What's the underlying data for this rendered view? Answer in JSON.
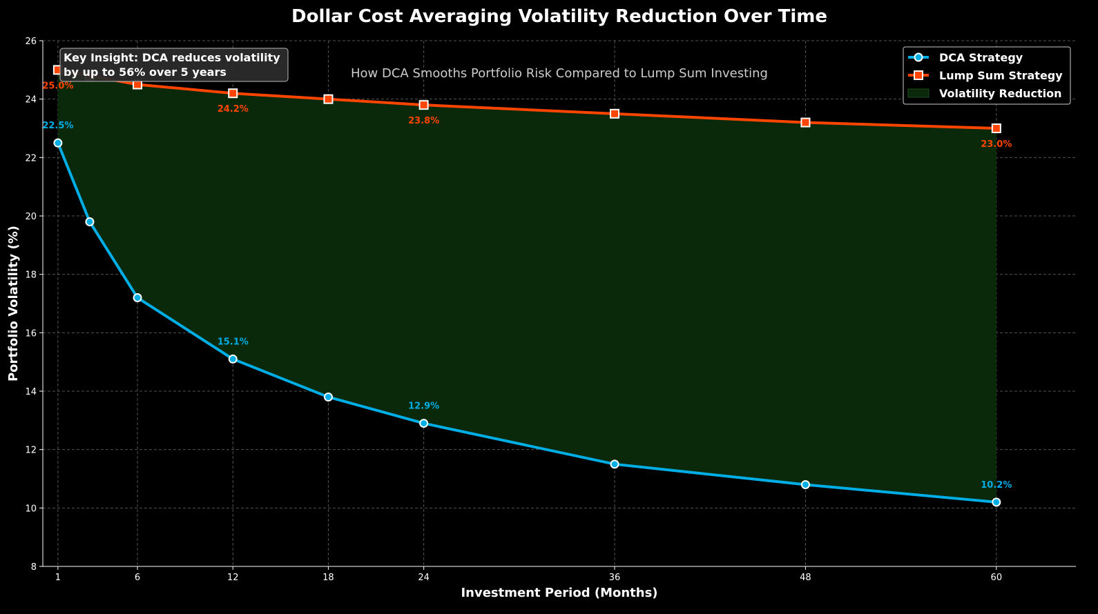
{
  "chart_data": {
    "type": "line",
    "title": "Dollar Cost Averaging Volatility Reduction Over Time",
    "subtitle": "How DCA Smooths Portfolio Risk Compared to Lump Sum Investing",
    "xlabel": "Investment Period (Months)",
    "ylabel": "Portfolio Volatility (%)",
    "xlim": [
      0.05,
      65
    ],
    "ylim": [
      8,
      26
    ],
    "xticks": [
      1,
      6,
      12,
      18,
      24,
      36,
      48,
      60
    ],
    "yticks": [
      8,
      10,
      12,
      14,
      16,
      18,
      20,
      22,
      24,
      26
    ],
    "grid": true,
    "legend_position": "top-right",
    "x": [
      1,
      3,
      6,
      12,
      18,
      24,
      36,
      48,
      60
    ],
    "series": [
      {
        "name": "DCA Strategy",
        "color": "#00aee6",
        "marker": "circle",
        "values": [
          22.5,
          19.8,
          17.2,
          15.1,
          13.8,
          12.9,
          11.5,
          10.8,
          10.2
        ],
        "labels": [
          {
            "x": 1,
            "text": "22.5%"
          },
          {
            "x": 12,
            "text": "15.1%"
          },
          {
            "x": 24,
            "text": "12.9%"
          },
          {
            "x": 60,
            "text": "10.2%"
          }
        ]
      },
      {
        "name": "Lump Sum Strategy",
        "color": "#ff4500",
        "marker": "square",
        "values": [
          25.0,
          24.8,
          24.5,
          24.2,
          24.0,
          23.8,
          23.5,
          23.2,
          23.0
        ],
        "labels": [
          {
            "x": 1,
            "text": "25.0%"
          },
          {
            "x": 12,
            "text": "24.2%"
          },
          {
            "x": 24,
            "text": "23.8%"
          },
          {
            "x": 60,
            "text": "23.0%"
          }
        ]
      }
    ],
    "fill": {
      "name": "Volatility Reduction",
      "color": "#0a280a"
    },
    "annotation": [
      "Key Insight: DCA reduces volatility",
      "by up to 56% over 5 years"
    ]
  }
}
